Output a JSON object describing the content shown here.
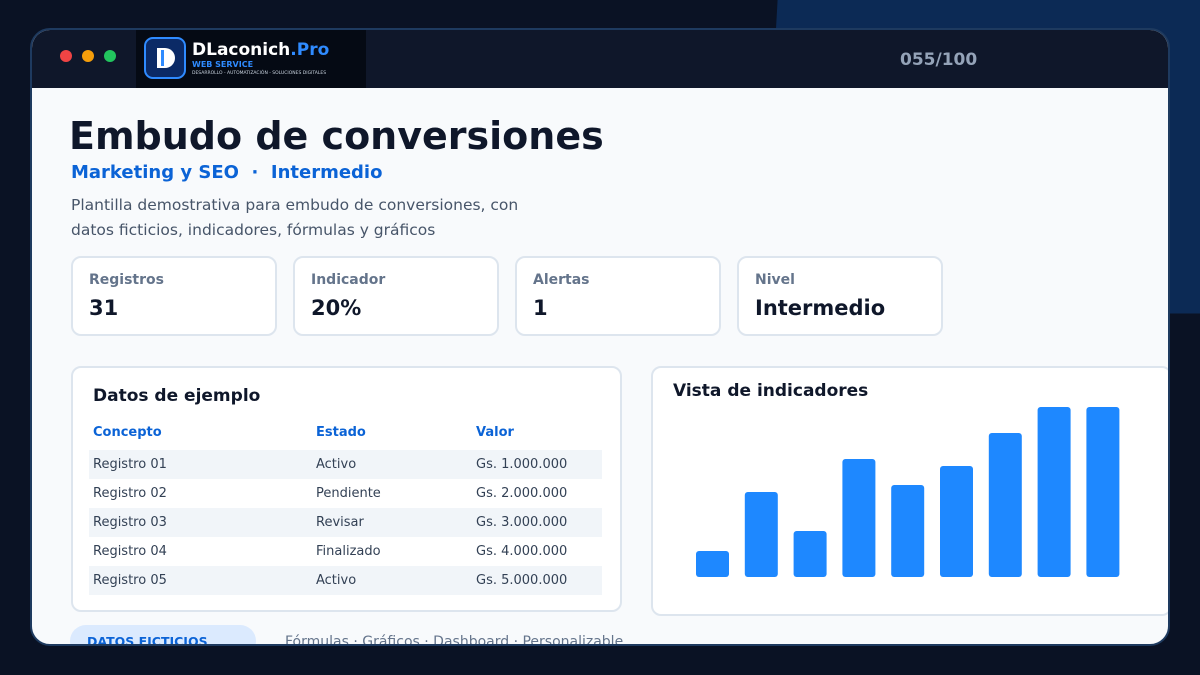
{
  "window": {
    "counter": "055/100"
  },
  "logo": {
    "brand": "DLaconich",
    "suffix": ".Pro",
    "tagline": "WEB SERVICE",
    "services": "DESARROLLO - AUTOMATIZACIÓN - SOLUCIONES DIGITALES"
  },
  "header": {
    "title": "Embudo de conversiones",
    "category": "Marketing y SEO",
    "separator": "·",
    "level": "Intermedio",
    "description": "Plantilla demostrativa para embudo de conversiones, con datos ficticios, indicadores, fórmulas y gráficos"
  },
  "stats": [
    {
      "label": "Registros",
      "value": "31"
    },
    {
      "label": "Indicador",
      "value": "20%"
    },
    {
      "label": "Alertas",
      "value": "1"
    },
    {
      "label": "Nivel",
      "value": "Intermedio"
    }
  ],
  "table": {
    "title": "Datos de ejemplo",
    "columns": [
      "Concepto",
      "Estado",
      "Valor"
    ],
    "rows": [
      [
        "Registro 01",
        "Activo",
        "Gs. 1.000.000"
      ],
      [
        "Registro 02",
        "Pendiente",
        "Gs. 2.000.000"
      ],
      [
        "Registro 03",
        "Revisar",
        "Gs. 3.000.000"
      ],
      [
        "Registro 04",
        "Finalizado",
        "Gs. 4.000.000"
      ],
      [
        "Registro 05",
        "Activo",
        "Gs. 5.000.000"
      ]
    ]
  },
  "chart_data": {
    "type": "bar",
    "title": "Vista de indicadores",
    "color": "#1e88ff",
    "categories": [
      null,
      null,
      null,
      null,
      null,
      null,
      null,
      null,
      null
    ],
    "values": [
      26,
      85,
      46,
      118,
      92,
      111,
      144,
      170,
      170
    ],
    "ylim": [
      0,
      170
    ]
  },
  "footer": {
    "badge": "DATOS FICTICIOS",
    "features": "Fórmulas · Gráficos · Dashboard · Personalizable"
  }
}
